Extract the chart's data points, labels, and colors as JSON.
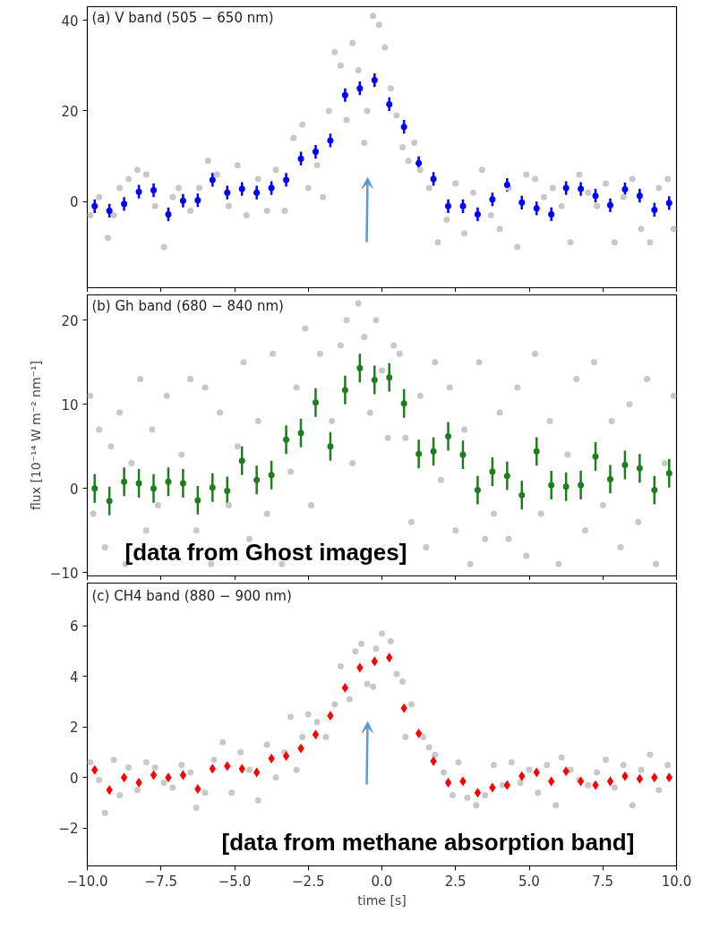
{
  "chart_data": [
    {
      "type": "scatter",
      "title": "(a) V band (505 − 650 nm)",
      "xlim": [
        -10,
        10
      ],
      "ylim": [
        -19,
        43
      ],
      "tick_labels": "y",
      "grid": false,
      "xticks": [
        {
          "value": -10,
          "label": null
        },
        {
          "value": -7.5,
          "label": null
        },
        {
          "value": -5,
          "label": null
        },
        {
          "value": -2.5,
          "label": null
        },
        {
          "value": 0,
          "label": null
        },
        {
          "value": 2.5,
          "label": null
        },
        {
          "value": 5,
          "label": null
        },
        {
          "value": 7.5,
          "label": null
        },
        {
          "value": 10,
          "label": null
        }
      ],
      "yticks": [
        0,
        20,
        40
      ],
      "series": [
        {
          "marker": "circle",
          "color": "#c8c8c8",
          "x": [
            -9.9,
            -9.6,
            -9.3,
            -9.1,
            -8.9,
            -8.6,
            -8.3,
            -8.0,
            -7.7,
            -7.4,
            -7.1,
            -6.9,
            -6.5,
            -6.2,
            -5.9,
            -5.6,
            -5.2,
            -4.9,
            -4.6,
            -4.2,
            -3.9,
            -3.6,
            -3.3,
            -3.0,
            -2.7,
            -2.5,
            -2.2,
            -2.0,
            -1.8,
            -1.6,
            -1.4,
            -1.2,
            -1.0,
            -0.8,
            -0.6,
            -0.5,
            -0.3,
            -0.1,
            0.1,
            0.3,
            0.5,
            0.7,
            0.9,
            1.1,
            1.3,
            1.6,
            1.9,
            2.2,
            2.5,
            2.8,
            3.1,
            3.4,
            3.7,
            4.0,
            4.3,
            4.6,
            4.9,
            5.2,
            5.5,
            5.8,
            6.1,
            6.4,
            6.7,
            7.0,
            7.3,
            7.6,
            7.9,
            8.2,
            8.5,
            8.8,
            9.1,
            9.4,
            9.7,
            9.9
          ],
          "values": [
            -3,
            1,
            -8,
            -3,
            3,
            5,
            7,
            6,
            -1,
            -10,
            1,
            3,
            -2,
            3,
            9,
            6,
            -1,
            8,
            -3,
            5,
            -2,
            7,
            -2,
            14,
            17,
            3,
            8,
            1,
            20,
            33,
            30,
            18,
            35,
            29,
            13,
            20,
            41,
            39,
            34,
            25,
            19,
            12,
            9,
            13,
            7,
            3,
            -9,
            -4,
            4,
            -7,
            2,
            7,
            -3,
            -6,
            3,
            -10,
            6,
            5,
            1,
            3,
            -1,
            -9,
            6,
            2,
            -1,
            4,
            -9,
            1,
            5,
            -6,
            -9,
            3,
            5,
            -6
          ]
        },
        {
          "marker": "circle",
          "color": "#0000ff",
          "x": [
            -9.75,
            -9.25,
            -8.75,
            -8.25,
            -7.75,
            -7.25,
            -6.75,
            -6.25,
            -5.75,
            -5.25,
            -4.75,
            -4.25,
            -3.75,
            -3.25,
            -2.75,
            -2.25,
            -1.75,
            -1.25,
            -0.75,
            -0.25,
            0.25,
            0.75,
            1.25,
            1.75,
            2.25,
            2.75,
            3.25,
            3.75,
            4.25,
            4.75,
            5.25,
            5.75,
            6.25,
            6.75,
            7.25,
            7.75,
            8.25,
            8.75,
            9.25,
            9.75
          ],
          "values": [
            -1,
            -2,
            -0.5,
            2.2,
            2.5,
            -2.8,
            0.2,
            0.3,
            4.8,
            2,
            2.8,
            2,
            3,
            4.8,
            9.5,
            11,
            13.5,
            23.5,
            25,
            26.8,
            21.5,
            16.5,
            8.5,
            5,
            -1,
            -1,
            -2.8,
            0.5,
            3.7,
            -0.2,
            -1.5,
            -2.8,
            3,
            2.8,
            1.3,
            -0.8,
            2.7,
            1.3,
            -1.8,
            -0.3
          ],
          "errors": [
            1.5,
            1.5,
            1.5,
            1.5,
            1.5,
            1.5,
            1.5,
            1.5,
            1.5,
            1.5,
            1.5,
            1.5,
            1.5,
            1.5,
            1.5,
            1.5,
            1.5,
            1.5,
            1.5,
            1.5,
            1.5,
            1.5,
            1.5,
            1.5,
            1.5,
            1.5,
            1.5,
            1.5,
            1.5,
            1.5,
            1.5,
            1.5,
            1.5,
            1.5,
            1.5,
            1.5,
            1.5,
            1.5,
            1.5,
            1.5
          ]
        }
      ]
    },
    {
      "type": "scatter",
      "title": "(b) Gh band (680 − 840 nm)",
      "ylabel": "flux [10⁻¹⁴ W m⁻² nm⁻¹]",
      "xlim": [
        -10,
        10
      ],
      "ylim": [
        -10.4,
        23
      ],
      "tick_labels": "y",
      "grid": false,
      "xticks": [
        {
          "value": -10,
          "label": null
        },
        {
          "value": -7.5,
          "label": null
        },
        {
          "value": -5,
          "label": null
        },
        {
          "value": -2.5,
          "label": null
        },
        {
          "value": 0,
          "label": null
        },
        {
          "value": 2.5,
          "label": null
        },
        {
          "value": 5,
          "label": null
        },
        {
          "value": 7.5,
          "label": null
        },
        {
          "value": 10,
          "label": null
        }
      ],
      "yticks": [
        {
          "value": -10,
          "label": "−10"
        },
        0,
        10,
        20
      ],
      "annotations": [
        "[data from Ghost images]"
      ],
      "series": [
        {
          "marker": "circle",
          "color": "#c8c8c8",
          "x": [
            -9.9,
            -9.8,
            -9.6,
            -9.4,
            -9.2,
            -8.9,
            -8.7,
            -8.5,
            -8.2,
            -8.0,
            -7.8,
            -7.6,
            -7.3,
            -6.8,
            -6.5,
            -6.3,
            -6.0,
            -5.8,
            -5.5,
            -5.2,
            -4.9,
            -4.7,
            -4.5,
            -4.2,
            -3.9,
            -3.7,
            -3.4,
            -3.1,
            -2.9,
            -2.6,
            -2.4,
            -2.1,
            -1.7,
            -1.4,
            -1.2,
            -1.0,
            -0.8,
            -0.6,
            -0.4,
            -0.2,
            0.0,
            0.2,
            0.4,
            0.6,
            0.8,
            1.0,
            1.3,
            1.5,
            1.8,
            2.0,
            2.3,
            2.5,
            2.8,
            3.0,
            3.3,
            3.5,
            3.8,
            4.0,
            4.3,
            4.6,
            4.9,
            5.2,
            5.4,
            5.7,
            6.0,
            6.3,
            6.6,
            6.9,
            7.2,
            7.5,
            7.8,
            8.1,
            8.4,
            8.7,
            9.0,
            9.3,
            9.6,
            9.9
          ],
          "values": [
            11,
            -3,
            7,
            -7,
            5,
            9,
            -9,
            3,
            13,
            -5,
            7,
            -2,
            11,
            4,
            13,
            -5,
            12,
            -9,
            9,
            -2,
            5,
            15,
            -6,
            8,
            -3,
            16,
            -9,
            2,
            12,
            19,
            -2,
            16,
            8,
            17,
            20,
            3,
            22,
            18,
            9,
            20,
            14,
            6,
            17,
            16,
            6,
            -4,
            11,
            -7,
            15,
            1,
            12,
            -5,
            7,
            -9,
            15,
            -6,
            -3,
            9,
            -6,
            12,
            -8,
            16,
            -3,
            8,
            -9,
            4,
            13,
            -5,
            15,
            -2,
            8,
            -7,
            10,
            -4,
            13,
            -9,
            3,
            11
          ]
        },
        {
          "marker": "circle",
          "color": "#1e7d1e",
          "x": [
            -9.75,
            -9.25,
            -8.75,
            -8.25,
            -7.75,
            -7.25,
            -6.75,
            -6.25,
            -5.75,
            -5.25,
            -4.75,
            -4.25,
            -3.75,
            -3.25,
            -2.75,
            -2.25,
            -1.75,
            -1.25,
            -0.75,
            -0.25,
            0.25,
            0.75,
            1.25,
            1.75,
            2.25,
            2.75,
            3.25,
            3.75,
            4.25,
            4.75,
            5.25,
            5.75,
            6.25,
            6.75,
            7.25,
            7.75,
            8.25,
            8.75,
            9.25,
            9.75
          ],
          "values": [
            0,
            -1.5,
            0.8,
            0.6,
            0,
            0.8,
            0.6,
            -1.4,
            0.1,
            -0.3,
            3.3,
            1,
            1.6,
            5.8,
            6.6,
            10.2,
            5,
            11.7,
            14.3,
            12.9,
            13.2,
            10.1,
            4.1,
            4.4,
            6.2,
            4,
            -0.2,
            2,
            1.5,
            -0.8,
            4.4,
            0.4,
            0.2,
            0.4,
            3.8,
            1.1,
            2.8,
            2.4,
            -0.2,
            1.8
          ],
          "errors": [
            1.7,
            1.7,
            1.7,
            1.7,
            1.7,
            1.7,
            1.7,
            1.7,
            1.7,
            1.7,
            1.7,
            1.7,
            1.7,
            1.7,
            1.7,
            1.7,
            1.7,
            1.7,
            1.7,
            1.7,
            1.7,
            1.7,
            1.7,
            1.7,
            1.7,
            1.7,
            1.7,
            1.7,
            1.7,
            1.7,
            1.7,
            1.7,
            1.7,
            1.7,
            1.7,
            1.7,
            1.7,
            1.7,
            1.7,
            1.7
          ]
        }
      ]
    },
    {
      "type": "scatter",
      "title": "(c) CH4 band (880 − 900 nm)",
      "xlabel": "time [s]",
      "xlim": [
        -10,
        10
      ],
      "ylim": [
        -3.5,
        7.7
      ],
      "grid": false,
      "xticks": [
        {
          "value": -10,
          "label": "−10.0"
        },
        {
          "value": -7.5,
          "label": "−7.5"
        },
        {
          "value": -5,
          "label": "−5.0"
        },
        {
          "value": -2.5,
          "label": "−2.5"
        },
        {
          "value": 0,
          "label": "0.0"
        },
        {
          "value": 2.5,
          "label": "2.5"
        },
        {
          "value": 5,
          "label": "5.0"
        },
        {
          "value": 7.5,
          "label": "7.5"
        },
        {
          "value": 10,
          "label": "10.0"
        }
      ],
      "yticks": [
        {
          "value": -2,
          "label": "−2"
        },
        0,
        2,
        4,
        6
      ],
      "annotations": [
        "[data from methane absorption band]"
      ],
      "series": [
        {
          "marker": "circle",
          "color": "#c8c8c8",
          "x": [
            -9.9,
            -9.6,
            -9.4,
            -9.1,
            -8.9,
            -8.6,
            -8.3,
            -8.0,
            -7.7,
            -7.4,
            -7.1,
            -6.8,
            -6.5,
            -6.3,
            -6.0,
            -5.7,
            -5.4,
            -5.1,
            -4.8,
            -4.5,
            -4.2,
            -3.9,
            -3.6,
            -3.3,
            -3.1,
            -2.9,
            -2.7,
            -2.5,
            -2.2,
            -1.9,
            -1.6,
            -1.4,
            -1.1,
            -0.9,
            -0.7,
            -0.5,
            -0.3,
            -0.2,
            0.0,
            0.3,
            0.5,
            0.7,
            0.8,
            1.0,
            1.4,
            1.6,
            1.8,
            2.1,
            2.4,
            2.6,
            2.9,
            3.2,
            3.5,
            3.8,
            4.1,
            4.4,
            4.7,
            5.0,
            5.3,
            5.6,
            5.9,
            6.1,
            6.4,
            6.7,
            7.0,
            7.3,
            7.6,
            7.9,
            8.2,
            8.5,
            8.8,
            9.1,
            9.4,
            9.7
          ],
          "values": [
            0.6,
            -0.1,
            -1.4,
            0.7,
            -0.7,
            0.4,
            -0.5,
            0.6,
            0.4,
            -0.2,
            -0.4,
            0.5,
            0.2,
            -1.2,
            -0.6,
            0.7,
            1.4,
            -0.6,
            1.0,
            0.3,
            -0.9,
            1.3,
            0,
            1.0,
            2.4,
            0.3,
            1.6,
            2.5,
            2.2,
            1.6,
            2.9,
            4.4,
            3.1,
            5.0,
            5.3,
            3.7,
            3.6,
            5.1,
            5.7,
            5.4,
            4.1,
            3.8,
            1.6,
            2.9,
            1.6,
            1.2,
            0.9,
            0.2,
            -0.7,
            0.6,
            -0.8,
            -1.1,
            -0.7,
            0.5,
            -0.3,
            0.6,
            -0.2,
            0.3,
            -0.6,
            0.5,
            -1.1,
            0.8,
            0.3,
            -0.1,
            -0.3,
            0.2,
            0.7,
            -0.4,
            0.5,
            -1.1,
            0.3,
            0.9,
            -0.5,
            0.5
          ]
        },
        {
          "marker": "diamond",
          "color": "#ff0000",
          "x": [
            -9.75,
            -9.25,
            -8.75,
            -8.25,
            -7.75,
            -7.25,
            -6.75,
            -6.25,
            -5.75,
            -5.25,
            -4.75,
            -4.25,
            -3.75,
            -3.25,
            -2.75,
            -2.25,
            -1.75,
            -1.25,
            -0.75,
            -0.25,
            0.25,
            0.75,
            1.25,
            1.75,
            2.25,
            2.75,
            3.25,
            3.75,
            4.25,
            4.75,
            5.25,
            5.75,
            6.25,
            6.75,
            7.25,
            7.75,
            8.25,
            8.75,
            9.25,
            9.75
          ],
          "values": [
            0.3,
            -0.5,
            0,
            -0.2,
            0.1,
            0,
            0.1,
            -0.45,
            0.35,
            0.45,
            0.35,
            0.2,
            0.75,
            0.85,
            1.15,
            1.7,
            2.45,
            3.55,
            4.35,
            4.6,
            4.75,
            2.75,
            1.75,
            0.65,
            -0.2,
            -0.15,
            -0.6,
            -0.4,
            -0.3,
            0.05,
            0.2,
            -0.15,
            0.25,
            -0.15,
            -0.3,
            -0.15,
            0.05,
            -0.05,
            0,
            0
          ]
        }
      ]
    }
  ]
}
